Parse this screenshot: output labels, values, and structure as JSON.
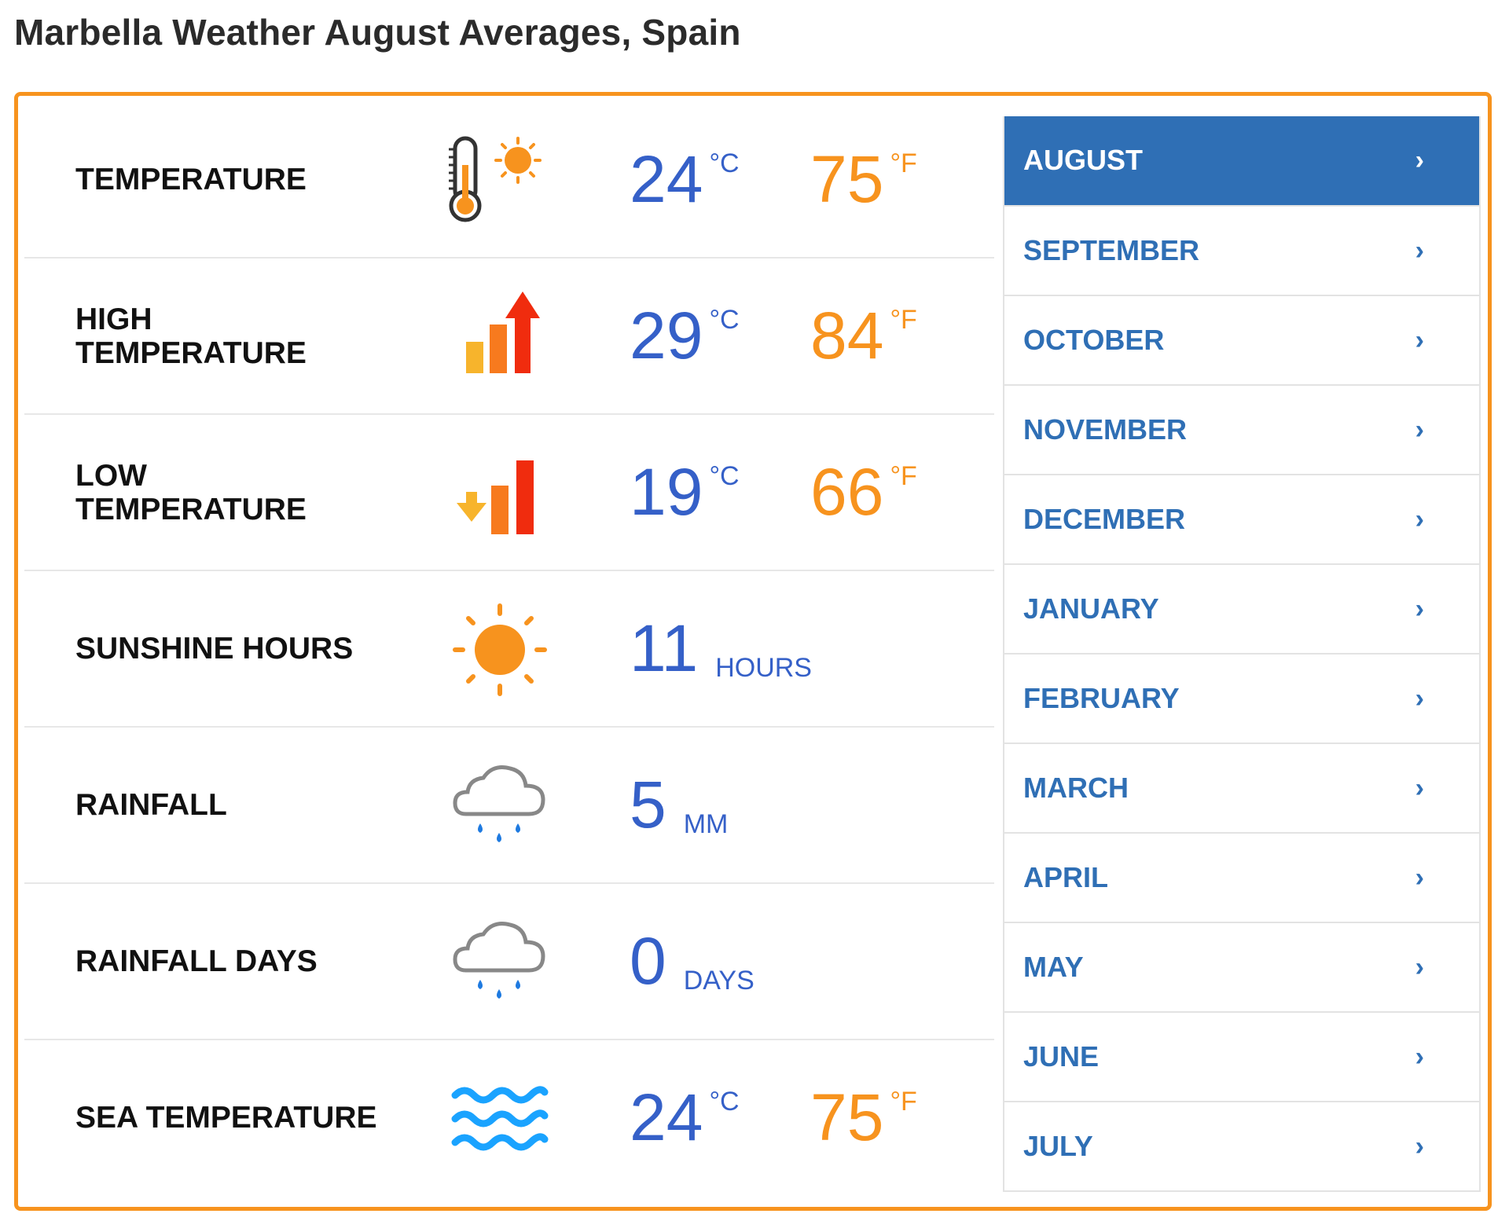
{
  "title": "Marbella Weather August Averages, Spain",
  "colors": {
    "accent": "#f7931e",
    "blue_value": "#3560c8",
    "link_blue": "#2f6fb5",
    "active_bg": "#2f6fb5"
  },
  "rows": [
    {
      "label": "TEMPERATURE",
      "icon": "thermometer-sun-icon",
      "value": "24",
      "unit": "°C",
      "alt_value": "75",
      "alt_unit": "°F"
    },
    {
      "label": "HIGH TEMPERATURE",
      "icon": "high-temperature-icon",
      "value": "29",
      "unit": "°C",
      "alt_value": "84",
      "alt_unit": "°F"
    },
    {
      "label": "LOW TEMPERATURE",
      "icon": "low-temperature-icon",
      "value": "19",
      "unit": "°C",
      "alt_value": "66",
      "alt_unit": "°F"
    },
    {
      "label": "SUNSHINE HOURS",
      "icon": "sun-icon",
      "value": "11",
      "unit": "HOURS"
    },
    {
      "label": "RAINFALL",
      "icon": "rain-cloud-icon",
      "value": "5",
      "unit": "MM"
    },
    {
      "label": "RAINFALL DAYS",
      "icon": "rain-cloud-icon",
      "value": "0",
      "unit": "DAYS"
    },
    {
      "label": "SEA TEMPERATURE",
      "icon": "waves-icon",
      "value": "24",
      "unit": "°C",
      "alt_value": "75",
      "alt_unit": "°F"
    }
  ],
  "months": {
    "active": "AUGUST",
    "chevron": "›",
    "items": [
      "AUGUST",
      "SEPTEMBER",
      "OCTOBER",
      "NOVEMBER",
      "DECEMBER",
      "JANUARY",
      "FEBRUARY",
      "MARCH",
      "APRIL",
      "MAY",
      "JUNE",
      "JULY"
    ]
  }
}
